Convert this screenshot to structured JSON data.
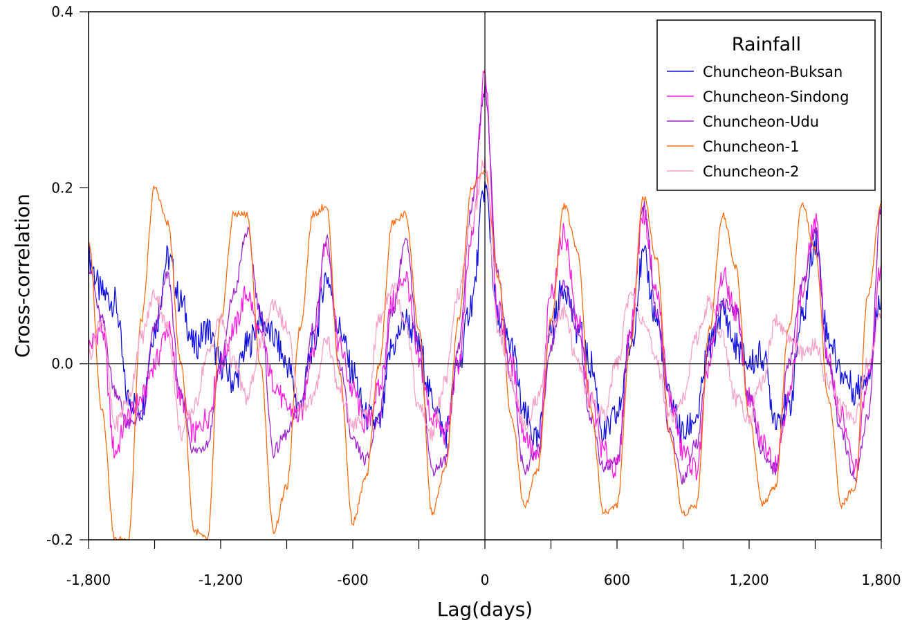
{
  "chart_data": {
    "type": "line",
    "title": "",
    "xlabel": "Lag(days)",
    "ylabel": "Cross-correlation",
    "xlim": [
      -1800,
      1800
    ],
    "ylim": [
      -0.2,
      0.4
    ],
    "x_ticks": [
      -1800,
      -1200,
      -600,
      0,
      600,
      1200,
      1800
    ],
    "x_tick_labels": [
      "-1,800",
      "-1,200",
      "-600",
      "0",
      "600",
      "1,200",
      "1,800"
    ],
    "x_minor_ticks": [
      -1500,
      -900,
      -300,
      300,
      900,
      1500
    ],
    "y_ticks": [
      -0.2,
      0.0,
      0.2,
      0.4
    ],
    "y_tick_labels": [
      "-0.2",
      "0.0",
      "0.2",
      "0.4"
    ],
    "grid": false,
    "reference_lines": {
      "y": 0,
      "x": 0
    },
    "legend": {
      "title": "Rainfall",
      "position": "top-right"
    },
    "x": [
      -1800,
      -1740,
      -1680,
      -1620,
      -1560,
      -1500,
      -1440,
      -1380,
      -1320,
      -1260,
      -1200,
      -1140,
      -1080,
      -1020,
      -960,
      -900,
      -840,
      -780,
      -720,
      -660,
      -600,
      -540,
      -480,
      -420,
      -360,
      -300,
      -240,
      -180,
      -120,
      -60,
      0,
      60,
      120,
      180,
      240,
      300,
      360,
      420,
      480,
      540,
      600,
      660,
      720,
      780,
      840,
      900,
      960,
      1020,
      1080,
      1140,
      1200,
      1260,
      1320,
      1380,
      1440,
      1500,
      1560,
      1620,
      1680,
      1740,
      1800
    ],
    "series": [
      {
        "name": "Chuncheon-Buksan",
        "color": "#1010e0",
        "values": [
          0.12,
          0.08,
          0.07,
          -0.04,
          -0.05,
          0.04,
          0.12,
          0.07,
          0.02,
          0.04,
          0.0,
          -0.02,
          0.02,
          0.05,
          0.03,
          0.0,
          -0.05,
          0.02,
          0.1,
          0.04,
          -0.01,
          -0.06,
          -0.07,
          0.02,
          0.05,
          0.02,
          -0.04,
          -0.08,
          0.0,
          0.07,
          0.2,
          0.05,
          0.02,
          -0.06,
          -0.09,
          0.04,
          0.09,
          0.04,
          0.0,
          -0.08,
          -0.06,
          0.02,
          0.12,
          0.05,
          -0.04,
          -0.08,
          -0.06,
          0.02,
          0.06,
          0.02,
          0.0,
          0.01,
          -0.06,
          -0.05,
          0.05,
          0.14,
          0.03,
          -0.01,
          -0.03,
          -0.01,
          0.08
        ]
      },
      {
        "name": "Chuncheon-Sindong",
        "color": "#ff1ee0",
        "values": [
          0.02,
          0.04,
          -0.1,
          -0.06,
          -0.04,
          0.0,
          0.04,
          -0.04,
          -0.08,
          -0.06,
          0.0,
          0.04,
          0.08,
          0.03,
          -0.02,
          -0.05,
          -0.06,
          0.02,
          0.14,
          0.02,
          -0.03,
          -0.07,
          -0.03,
          0.07,
          0.1,
          0.0,
          -0.06,
          -0.08,
          0.0,
          0.14,
          0.33,
          0.06,
          0.0,
          -0.08,
          -0.11,
          0.08,
          0.15,
          0.05,
          -0.04,
          -0.1,
          -0.12,
          0.04,
          0.17,
          0.08,
          -0.04,
          -0.1,
          -0.12,
          0.0,
          0.1,
          0.06,
          -0.04,
          -0.09,
          -0.11,
          -0.04,
          0.08,
          0.16,
          0.0,
          -0.06,
          -0.12,
          -0.02,
          0.11
        ]
      },
      {
        "name": "Chuncheon-Udu",
        "color": "#a020d0",
        "values": [
          0.11,
          0.05,
          -0.03,
          -0.07,
          -0.06,
          0.04,
          0.1,
          -0.04,
          -0.1,
          -0.09,
          0.0,
          0.08,
          0.15,
          0.06,
          -0.1,
          -0.08,
          -0.05,
          0.04,
          0.14,
          0.0,
          -0.09,
          -0.11,
          -0.06,
          0.06,
          0.14,
          0.02,
          -0.12,
          -0.11,
          0.02,
          0.18,
          0.31,
          0.1,
          -0.02,
          -0.12,
          -0.1,
          0.02,
          0.09,
          0.04,
          -0.06,
          -0.12,
          -0.11,
          0.03,
          0.18,
          0.06,
          -0.08,
          -0.13,
          -0.09,
          0.02,
          0.07,
          0.06,
          -0.04,
          -0.1,
          -0.12,
          0.0,
          0.09,
          0.15,
          0.0,
          -0.08,
          -0.13,
          -0.06,
          0.18
        ]
      },
      {
        "name": "Chuncheon-1",
        "color": "#ff6a10",
        "values": [
          0.14,
          -0.05,
          -0.2,
          -0.2,
          0.05,
          0.2,
          0.16,
          0.0,
          -0.19,
          -0.2,
          0.05,
          0.17,
          0.17,
          0.0,
          -0.19,
          -0.14,
          0.04,
          0.17,
          0.18,
          -0.01,
          -0.18,
          -0.13,
          0.0,
          0.16,
          0.17,
          0.04,
          -0.17,
          -0.12,
          0.05,
          0.2,
          0.22,
          0.1,
          -0.06,
          -0.16,
          -0.12,
          0.05,
          0.18,
          0.13,
          -0.05,
          -0.17,
          -0.16,
          0.02,
          0.19,
          0.12,
          -0.08,
          -0.17,
          -0.16,
          0.04,
          0.17,
          0.11,
          -0.06,
          -0.16,
          -0.14,
          0.04,
          0.18,
          0.13,
          -0.04,
          -0.16,
          -0.14,
          0.08,
          0.18
        ]
      },
      {
        "name": "Chuncheon-2",
        "color": "#f8a0c8",
        "values": [
          0.01,
          0.05,
          -0.07,
          -0.04,
          0.03,
          0.08,
          0.04,
          -0.08,
          -0.05,
          0.01,
          0.05,
          0.0,
          -0.04,
          0.02,
          0.07,
          0.04,
          -0.05,
          -0.04,
          0.03,
          -0.03,
          -0.07,
          -0.06,
          0.05,
          0.09,
          0.05,
          -0.05,
          -0.08,
          -0.02,
          0.08,
          0.16,
          0.23,
          0.04,
          -0.02,
          -0.07,
          -0.04,
          0.04,
          0.06,
          0.0,
          -0.04,
          -0.06,
          0.0,
          0.08,
          0.05,
          0.0,
          -0.06,
          -0.04,
          0.03,
          0.07,
          0.03,
          -0.04,
          -0.06,
          -0.02,
          0.05,
          0.03,
          0.01,
          0.02,
          -0.02,
          -0.05,
          -0.06,
          0.0,
          0.06
        ]
      }
    ]
  }
}
